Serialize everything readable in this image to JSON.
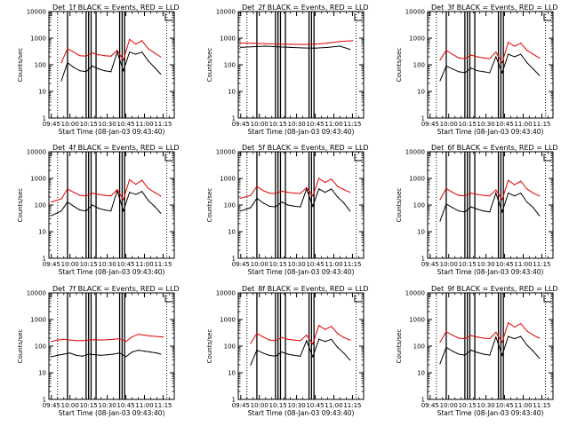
{
  "chart_data": [
    {
      "type": "line",
      "title": "Det_1f BLACK = Events, RED = LLD",
      "xlabel": "Start Time (08-Jan-03 09:43:40)",
      "ylabel": "Counts/sec",
      "yscale": "log",
      "ylim": [
        1,
        10000
      ],
      "xlim": [
        "09:43",
        "11:24"
      ],
      "x_tick_labels": [
        "09:45",
        "10:00",
        "10:15",
        "10:30",
        "10:45",
        "11:00",
        "11:15"
      ],
      "y_tick_labels": [
        "1",
        "10",
        "100",
        "1000",
        "10000"
      ],
      "series": [
        {
          "name": "Events",
          "color": "#000000",
          "x": [
            "09:53",
            "09:58",
            "10:03",
            "10:08",
            "10:13",
            "10:18",
            "10:23",
            "10:28",
            "10:33",
            "10:38",
            "10:43",
            "10:48",
            "10:53",
            "10:58",
            "11:03",
            "11:08",
            "11:13"
          ],
          "values": [
            25,
            120,
            80,
            60,
            55,
            90,
            70,
            60,
            55,
            300,
            60,
            300,
            250,
            300,
            140,
            80,
            45
          ]
        },
        {
          "name": "LLD",
          "color": "#e00000",
          "x": [
            "09:53",
            "09:58",
            "10:03",
            "10:08",
            "10:13",
            "10:18",
            "10:23",
            "10:28",
            "10:33",
            "10:38",
            "10:43",
            "10:48",
            "10:53",
            "10:58",
            "11:03",
            "11:08",
            "11:13"
          ],
          "values": [
            120,
            400,
            300,
            220,
            210,
            280,
            240,
            220,
            210,
            350,
            150,
            900,
            600,
            800,
            400,
            280,
            200
          ]
        }
      ]
    },
    {
      "type": "line",
      "title": "Det_2f BLACK = Events, RED = LLD",
      "xlabel": "Start Time (08-Jan-03 09:43:40)",
      "ylabel": "Counts/sec",
      "yscale": "log",
      "ylim": [
        1,
        10000
      ],
      "xlim": [
        "09:43",
        "11:24"
      ],
      "x_tick_labels": [
        "09:45",
        "10:00",
        "10:15",
        "10:30",
        "10:45",
        "11:00",
        "11:15"
      ],
      "y_tick_labels": [
        "1",
        "10",
        "100",
        "1000",
        "10000"
      ],
      "series": [
        {
          "name": "Events",
          "color": "#000000",
          "x": [
            "09:45",
            "09:55",
            "10:05",
            "10:15",
            "10:25",
            "10:35",
            "10:45",
            "10:55",
            "11:05",
            "11:13"
          ],
          "values": [
            450,
            480,
            500,
            470,
            450,
            430,
            420,
            450,
            500,
            380
          ]
        },
        {
          "name": "LLD",
          "color": "#e00000",
          "x": [
            "09:45",
            "09:55",
            "10:05",
            "10:15",
            "10:25",
            "10:35",
            "10:45",
            "10:55",
            "11:05",
            "11:15"
          ],
          "values": [
            650,
            640,
            620,
            600,
            590,
            580,
            600,
            650,
            750,
            800
          ]
        }
      ]
    },
    {
      "type": "line",
      "title": "Det_3f BLACK = Events, RED = LLD",
      "xlabel": "Start Time (08-Jan-03 09:43:40)",
      "ylabel": "Counts/sec",
      "yscale": "log",
      "ylim": [
        1,
        10000
      ],
      "xlim": [
        "09:43",
        "11:24"
      ],
      "x_tick_labels": [
        "09:45",
        "10:00",
        "10:15",
        "10:30",
        "10:45",
        "11:00",
        "11:15"
      ],
      "y_tick_labels": [
        "1",
        "10",
        "100",
        "1000",
        "10000"
      ],
      "series": [
        {
          "name": "Events",
          "color": "#000000",
          "x": [
            "09:53",
            "09:58",
            "10:03",
            "10:08",
            "10:13",
            "10:18",
            "10:23",
            "10:28",
            "10:33",
            "10:38",
            "10:43",
            "10:48",
            "10:53",
            "10:58",
            "11:03",
            "11:08",
            "11:13"
          ],
          "values": [
            25,
            90,
            70,
            55,
            50,
            75,
            60,
            55,
            50,
            200,
            50,
            250,
            200,
            250,
            120,
            70,
            40
          ]
        },
        {
          "name": "LLD",
          "color": "#e00000",
          "x": [
            "09:53",
            "09:58",
            "10:03",
            "10:08",
            "10:13",
            "10:18",
            "10:23",
            "10:28",
            "10:33",
            "10:38",
            "10:43",
            "10:48",
            "10:53",
            "10:58",
            "11:03",
            "11:08",
            "11:13"
          ],
          "values": [
            150,
            350,
            250,
            180,
            170,
            230,
            200,
            180,
            170,
            300,
            120,
            700,
            500,
            650,
            350,
            250,
            180
          ]
        }
      ]
    },
    {
      "type": "line",
      "title": "Det_4f BLACK = Events, RED = LLD",
      "xlabel": "Start Time (08-Jan-03 09:43:40)",
      "ylabel": "Counts/sec",
      "yscale": "log",
      "ylim": [
        1,
        10000
      ],
      "xlim": [
        "09:43",
        "11:24"
      ],
      "x_tick_labels": [
        "09:45",
        "10:00",
        "10:15",
        "10:30",
        "10:45",
        "11:00",
        "11:15"
      ],
      "y_tick_labels": [
        "1",
        "10",
        "100",
        "1000",
        "10000"
      ],
      "series": [
        {
          "name": "Events",
          "color": "#000000",
          "x": [
            "09:45",
            "09:53",
            "09:58",
            "10:03",
            "10:08",
            "10:13",
            "10:18",
            "10:23",
            "10:28",
            "10:33",
            "10:38",
            "10:43",
            "10:48",
            "10:53",
            "10:58",
            "11:03",
            "11:08",
            "11:13"
          ],
          "values": [
            40,
            60,
            130,
            90,
            65,
            60,
            100,
            75,
            65,
            60,
            350,
            60,
            300,
            250,
            320,
            150,
            90,
            50
          ]
        },
        {
          "name": "LLD",
          "color": "#e00000",
          "x": [
            "09:45",
            "09:53",
            "09:58",
            "10:03",
            "10:08",
            "10:13",
            "10:18",
            "10:23",
            "10:28",
            "10:33",
            "10:38",
            "10:43",
            "10:48",
            "10:53",
            "10:58",
            "11:03",
            "11:08",
            "11:13"
          ],
          "values": [
            130,
            170,
            400,
            300,
            230,
            220,
            280,
            250,
            230,
            220,
            380,
            160,
            900,
            600,
            850,
            420,
            300,
            220
          ]
        }
      ]
    },
    {
      "type": "line",
      "title": "Det_5f BLACK = Events, RED = LLD",
      "xlabel": "Start Time (08-Jan-03 09:43:40)",
      "ylabel": "Counts/sec",
      "yscale": "log",
      "ylim": [
        1,
        10000
      ],
      "xlim": [
        "09:43",
        "11:24"
      ],
      "x_tick_labels": [
        "09:45",
        "10:00",
        "10:15",
        "10:30",
        "10:45",
        "11:00",
        "11:15"
      ],
      "y_tick_labels": [
        "1",
        "10",
        "100",
        "1000",
        "10000"
      ],
      "series": [
        {
          "name": "Events",
          "color": "#000000",
          "x": [
            "09:45",
            "09:53",
            "09:58",
            "10:03",
            "10:08",
            "10:13",
            "10:18",
            "10:23",
            "10:28",
            "10:33",
            "10:38",
            "10:43",
            "10:48",
            "10:53",
            "10:58",
            "11:03",
            "11:08",
            "11:13"
          ],
          "values": [
            60,
            80,
            180,
            120,
            90,
            85,
            130,
            100,
            90,
            85,
            400,
            90,
            400,
            300,
            400,
            200,
            120,
            60
          ]
        },
        {
          "name": "LLD",
          "color": "#e00000",
          "x": [
            "09:45",
            "09:53",
            "09:58",
            "10:03",
            "10:08",
            "10:13",
            "10:18",
            "10:23",
            "10:28",
            "10:33",
            "10:38",
            "10:43",
            "10:48",
            "10:53",
            "10:58",
            "11:03",
            "11:08",
            "11:13"
          ],
          "values": [
            180,
            230,
            500,
            350,
            280,
            270,
            330,
            300,
            280,
            270,
            450,
            220,
            1000,
            700,
            950,
            500,
            380,
            300
          ]
        }
      ]
    },
    {
      "type": "line",
      "title": "Det_6f BLACK = Events, RED = LLD",
      "xlabel": "Start Time (08-Jan-03 09:43:40)",
      "ylabel": "Counts/sec",
      "yscale": "log",
      "ylim": [
        1,
        10000
      ],
      "xlim": [
        "09:43",
        "11:24"
      ],
      "x_tick_labels": [
        "09:45",
        "10:00",
        "10:15",
        "10:30",
        "10:45",
        "11:00",
        "11:15"
      ],
      "y_tick_labels": [
        "1",
        "10",
        "100",
        "1000",
        "10000"
      ],
      "series": [
        {
          "name": "Events",
          "color": "#000000",
          "x": [
            "09:53",
            "09:58",
            "10:03",
            "10:08",
            "10:13",
            "10:18",
            "10:23",
            "10:28",
            "10:33",
            "10:38",
            "10:43",
            "10:48",
            "10:53",
            "10:58",
            "11:03",
            "11:08",
            "11:13"
          ],
          "values": [
            25,
            110,
            80,
            60,
            55,
            85,
            70,
            60,
            55,
            280,
            55,
            280,
            220,
            280,
            130,
            80,
            40
          ]
        },
        {
          "name": "LLD",
          "color": "#e00000",
          "x": [
            "09:53",
            "09:58",
            "10:03",
            "10:08",
            "10:13",
            "10:18",
            "10:23",
            "10:28",
            "10:33",
            "10:38",
            "10:43",
            "10:48",
            "10:53",
            "10:58",
            "11:03",
            "11:08",
            "11:13"
          ],
          "values": [
            160,
            420,
            300,
            230,
            220,
            280,
            250,
            230,
            220,
            370,
            160,
            850,
            580,
            780,
            400,
            280,
            220
          ]
        }
      ]
    },
    {
      "type": "line",
      "title": "Det_7f BLACK = Events, RED = LLD",
      "xlabel": "Start Time (08-Jan-03 09:43:40)",
      "ylabel": "Counts/sec",
      "yscale": "log",
      "ylim": [
        1,
        10000
      ],
      "xlim": [
        "09:43",
        "11:24"
      ],
      "x_tick_labels": [
        "09:45",
        "10:00",
        "10:15",
        "10:30",
        "10:45",
        "11:00",
        "11:15"
      ],
      "y_tick_labels": [
        "1",
        "10",
        "100",
        "1000",
        "10000"
      ],
      "series": [
        {
          "name": "Events",
          "color": "#000000",
          "x": [
            "09:45",
            "09:50",
            "09:55",
            "10:00",
            "10:05",
            "10:10",
            "10:15",
            "10:20",
            "10:25",
            "10:30",
            "10:35",
            "10:40",
            "10:45",
            "10:50",
            "10:55",
            "11:00",
            "11:05",
            "11:10",
            "11:13"
          ],
          "values": [
            40,
            45,
            50,
            55,
            45,
            42,
            50,
            48,
            45,
            47,
            50,
            55,
            40,
            60,
            70,
            65,
            60,
            55,
            50
          ]
        },
        {
          "name": "LLD",
          "color": "#e00000",
          "x": [
            "09:45",
            "09:50",
            "09:55",
            "10:00",
            "10:05",
            "10:10",
            "10:15",
            "10:20",
            "10:25",
            "10:30",
            "10:35",
            "10:40",
            "10:45",
            "10:50",
            "10:55",
            "11:00",
            "11:05",
            "11:10",
            "11:15"
          ],
          "values": [
            150,
            170,
            180,
            170,
            160,
            160,
            170,
            175,
            170,
            175,
            180,
            190,
            150,
            220,
            280,
            260,
            240,
            230,
            220
          ]
        }
      ]
    },
    {
      "type": "line",
      "title": "Det_8f BLACK = Events, RED = LLD",
      "xlabel": "Start Time (08-Jan-03 09:43:40)",
      "ylabel": "Counts/sec",
      "yscale": "log",
      "ylim": [
        1,
        10000
      ],
      "xlim": [
        "09:43",
        "11:24"
      ],
      "x_tick_labels": [
        "09:45",
        "10:00",
        "10:15",
        "10:30",
        "10:45",
        "11:00",
        "11:15"
      ],
      "y_tick_labels": [
        "1",
        "10",
        "100",
        "1000",
        "10000"
      ],
      "series": [
        {
          "name": "Events",
          "color": "#000000",
          "x": [
            "09:53",
            "09:58",
            "10:03",
            "10:08",
            "10:13",
            "10:18",
            "10:23",
            "10:28",
            "10:33",
            "10:38",
            "10:43",
            "10:48",
            "10:53",
            "10:58",
            "11:03",
            "11:08",
            "11:13"
          ],
          "values": [
            20,
            70,
            55,
            45,
            42,
            60,
            50,
            45,
            42,
            160,
            40,
            180,
            150,
            180,
            90,
            55,
            30
          ]
        },
        {
          "name": "LLD",
          "color": "#e00000",
          "x": [
            "09:53",
            "09:58",
            "10:03",
            "10:08",
            "10:13",
            "10:18",
            "10:23",
            "10:28",
            "10:33",
            "10:38",
            "10:43",
            "10:48",
            "10:53",
            "10:58",
            "11:03",
            "11:08",
            "11:13"
          ],
          "values": [
            130,
            300,
            220,
            170,
            160,
            210,
            180,
            170,
            160,
            260,
            120,
            600,
            420,
            550,
            300,
            210,
            170
          ]
        }
      ]
    },
    {
      "type": "line",
      "title": "Det_9f BLACK = Events, RED = LLD",
      "xlabel": "Start Time (08-Jan-03 09:43:40)",
      "ylabel": "Counts/sec",
      "yscale": "log",
      "ylim": [
        1,
        10000
      ],
      "xlim": [
        "09:43",
        "11:24"
      ],
      "x_tick_labels": [
        "09:45",
        "10:00",
        "10:15",
        "10:30",
        "10:45",
        "11:00",
        "11:15"
      ],
      "y_tick_labels": [
        "1",
        "10",
        "100",
        "1000",
        "10000"
      ],
      "series": [
        {
          "name": "Events",
          "color": "#000000",
          "x": [
            "09:53",
            "09:58",
            "10:03",
            "10:08",
            "10:13",
            "10:18",
            "10:23",
            "10:28",
            "10:33",
            "10:38",
            "10:43",
            "10:48",
            "10:53",
            "10:58",
            "11:03",
            "11:08",
            "11:13"
          ],
          "values": [
            22,
            90,
            65,
            50,
            46,
            70,
            58,
            50,
            46,
            220,
            45,
            230,
            190,
            230,
            110,
            65,
            35
          ]
        },
        {
          "name": "LLD",
          "color": "#e00000",
          "x": [
            "09:53",
            "09:58",
            "10:03",
            "10:08",
            "10:13",
            "10:18",
            "10:23",
            "10:28",
            "10:33",
            "10:38",
            "10:43",
            "10:48",
            "10:53",
            "10:58",
            "11:03",
            "11:08",
            "11:13"
          ],
          "values": [
            140,
            350,
            260,
            200,
            190,
            250,
            220,
            200,
            190,
            330,
            140,
            750,
            520,
            700,
            370,
            260,
            200
          ]
        }
      ]
    }
  ],
  "markers": {
    "dotted_lines": [
      "09:50",
      "11:18"
    ],
    "solid_lines": [
      "09:58",
      "10:13",
      "10:15",
      "10:17",
      "10:21",
      "10:40",
      "10:42",
      "10:44"
    ]
  }
}
